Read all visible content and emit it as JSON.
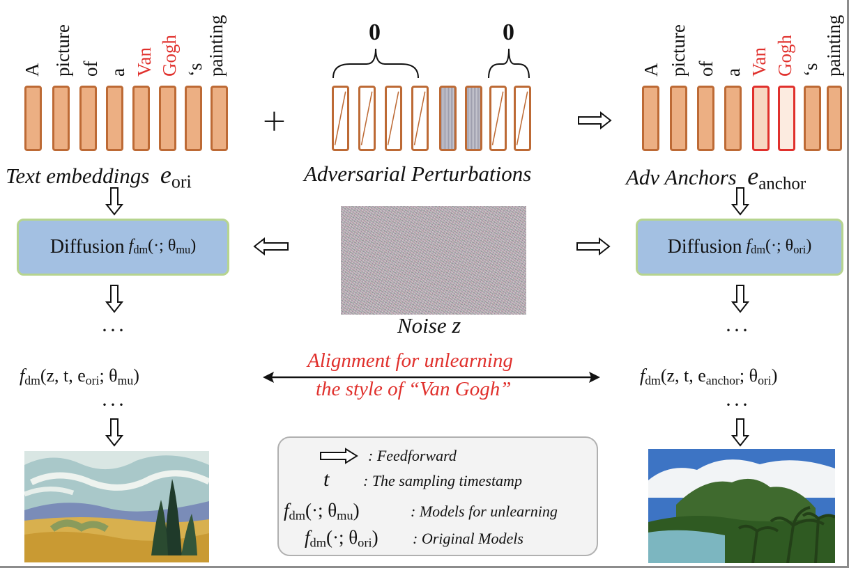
{
  "tokens": [
    "A",
    "picture",
    "of",
    "a",
    "Van",
    "Gogh",
    "‘s",
    "painting"
  ],
  "zero_label": "0",
  "captions": {
    "text_embeddings": "Text embeddings",
    "text_embeddings_sym": "e",
    "text_embeddings_sub": "ori",
    "adversarial": "Adversarial Perturbations",
    "adv_anchors": "Adv Anchors",
    "adv_anchors_sym": "e",
    "adv_anchors_sub": "anchor",
    "noise": "Noise",
    "noise_sym": "z"
  },
  "plus_sign": "+",
  "diffusion_left": {
    "label": "Diffusion",
    "fn": "f",
    "fn_sub": "dm",
    "args": "(·; θ",
    "param_sub": "mu",
    "close": ")"
  },
  "diffusion_right": {
    "label": "Diffusion",
    "fn": "f",
    "fn_sub": "dm",
    "args": "(·; θ",
    "param_sub": "ori",
    "close": ")"
  },
  "dots": "···",
  "output_left": {
    "fn": "f",
    "fn_sub": "dm",
    "args": "(z, t, e",
    "e_sub": "ori",
    "sep": "; θ",
    "param_sub": "mu",
    "close": ")"
  },
  "output_right": {
    "fn": "f",
    "fn_sub": "dm",
    "args": "(z, t, e",
    "e_sub": "anchor",
    "sep": "; θ",
    "param_sub": "ori",
    "close": ")"
  },
  "alignment": {
    "line1": "Alignment for unlearning",
    "line2": "the style of “Van Gogh”"
  },
  "legend": {
    "feedforward": ": Feedforward",
    "t_symbol": "t",
    "t_desc": ": The sampling timestamp",
    "mu_fn": "f",
    "mu_fn_sub": "dm",
    "mu_args": "(·; θ",
    "mu_sub": "mu",
    "mu_close": ")",
    "mu_desc": ": Models for unlearning",
    "ori_fn": "f",
    "ori_fn_sub": "dm",
    "ori_args": "(·; θ",
    "ori_sub": "ori",
    "ori_close": ")",
    "ori_desc": ": Original Models"
  },
  "colors": {
    "token_fill": "#ecaf83",
    "token_border": "#bd6a35",
    "highlight_red": "#e0302c",
    "diffusion_fill": "#a3c0e2",
    "diffusion_border": "#b6d48e",
    "legend_fill": "#f3f3f3"
  },
  "icons": {
    "arrow": "hollow-arrow-icon",
    "double_arrow": "double-headed-arrow-icon",
    "brace": "curly-brace-icon"
  }
}
